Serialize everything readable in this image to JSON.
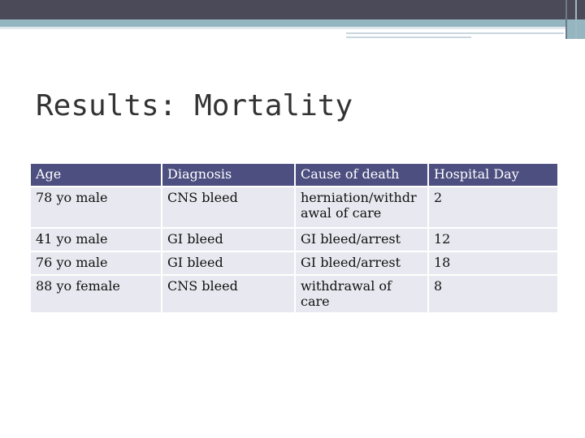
{
  "slide": {
    "title": "Results:  Mortality"
  },
  "table": {
    "headers": [
      "Age",
      "Diagnosis",
      "Cause of death",
      "Hospital Day"
    ],
    "rows": [
      [
        "78 yo male",
        "CNS bleed",
        "herniation/withdrawal of care",
        "2"
      ],
      [
        "41 yo male",
        "GI bleed",
        "GI bleed/arrest",
        "12"
      ],
      [
        "76 yo male",
        "GI bleed",
        "GI bleed/arrest",
        "18"
      ],
      [
        "88 yo female",
        "CNS bleed",
        "withdrawal of care",
        "8"
      ]
    ]
  },
  "colors": {
    "header_bg": "#4d4f80",
    "cell_bg": "#e8e8f0",
    "top_bar": "#4a4a58",
    "accent": "#93b6c0"
  }
}
